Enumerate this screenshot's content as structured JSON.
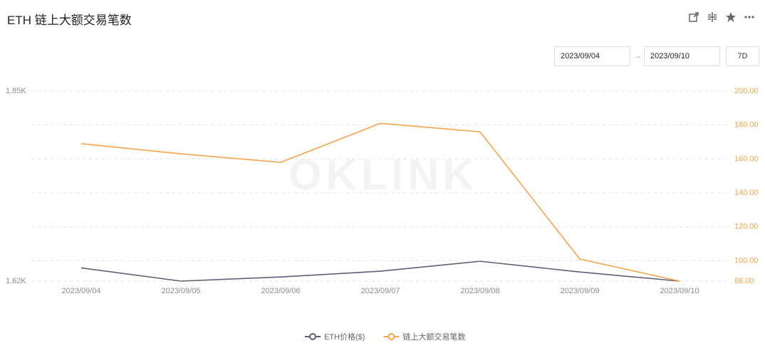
{
  "title": "ETH 链上大额交易笔数",
  "controls": {
    "start_date": "2023/09/04",
    "end_date": "2023/09/10",
    "range_button": "7D"
  },
  "chart_data": {
    "type": "line",
    "categories": [
      "2023/09/04",
      "2023/09/05",
      "2023/09/06",
      "2023/09/07",
      "2023/09/08",
      "2023/09/09",
      "2023/09/10"
    ],
    "series": [
      {
        "name": "ETH价格($)",
        "color": "#5f5d78",
        "axis": "y",
        "values": [
          1636,
          1620,
          1625,
          1632,
          1644,
          1631,
          1620
        ]
      },
      {
        "name": "链上大额交易笔数",
        "color": "#f7a54a",
        "axis": "y2",
        "values": [
          169,
          163,
          158,
          181,
          176,
          101,
          88
        ]
      }
    ],
    "ylim": [
      1620,
      1850
    ],
    "yticks": [
      {
        "value": 1850,
        "label": "1.85K"
      },
      {
        "value": 1620,
        "label": "1.62K"
      }
    ],
    "y2lim": [
      88,
      200
    ],
    "y2ticks": [
      {
        "value": 88,
        "label": "88.00"
      },
      {
        "value": 100,
        "label": "100.00"
      },
      {
        "value": 120,
        "label": "120.00"
      },
      {
        "value": 140,
        "label": "140.00"
      },
      {
        "value": 160,
        "label": "160.00"
      },
      {
        "value": 180,
        "label": "180.00"
      },
      {
        "value": 200,
        "label": "200.00"
      }
    ],
    "grid": true,
    "legend": "bottom"
  }
}
